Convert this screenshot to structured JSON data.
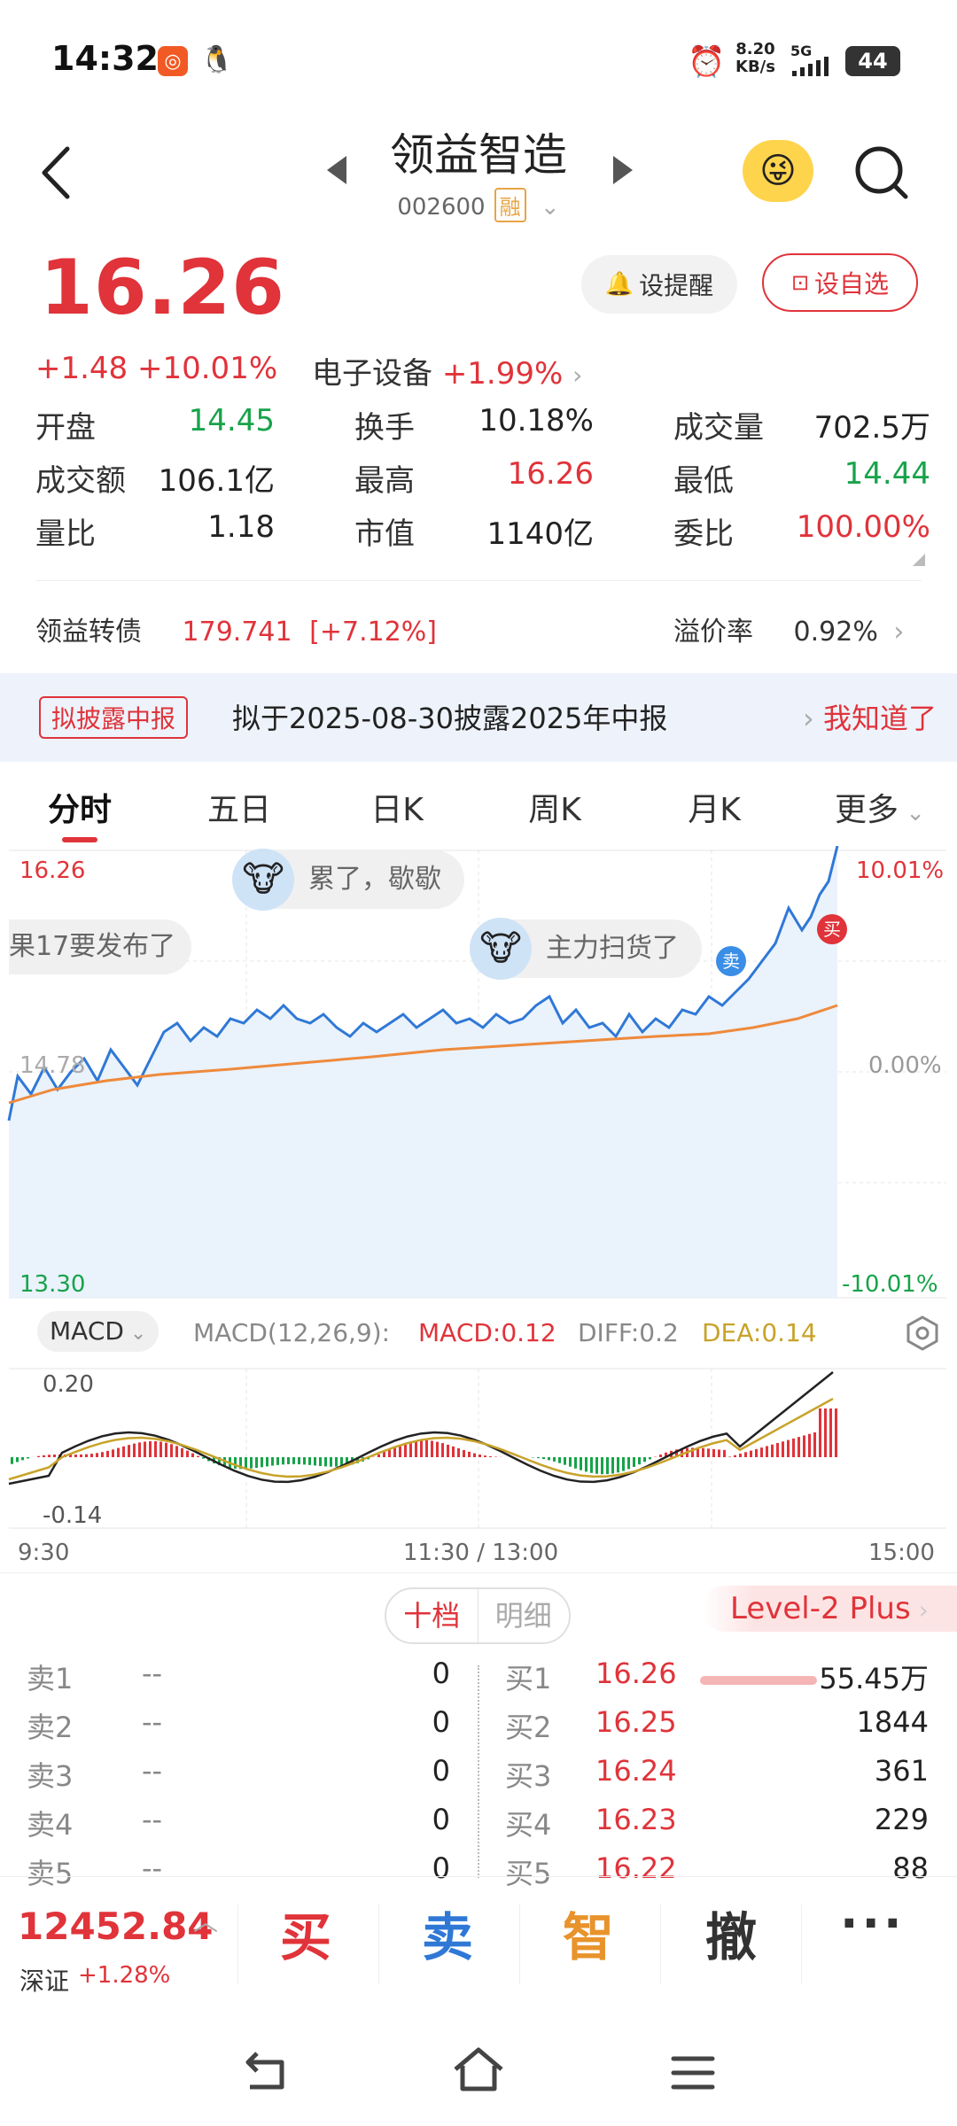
{
  "status_bar": {
    "time": "14:32",
    "net_speed": "8.20",
    "net_unit": "KB/s",
    "signal": "5G",
    "battery": "44"
  },
  "header": {
    "stock_name": "领益智造",
    "stock_code": "002600",
    "margin_badge": "融"
  },
  "quote": {
    "price": "16.26",
    "change": "+1.48",
    "change_pct": "+10.01%",
    "sector": "电子设备",
    "sector_pct": "+1.99%",
    "alert_btn": "设提醒",
    "watch_btn": "设自选",
    "stats": [
      [
        {
          "label": "开盘",
          "value": "14.45",
          "color": "green"
        },
        {
          "label": "换手",
          "value": "10.18%",
          "color": "black"
        },
        {
          "label": "成交量",
          "value": "702.5万",
          "color": "black"
        }
      ],
      [
        {
          "label": "成交额",
          "value": "106.1亿",
          "color": "black"
        },
        {
          "label": "最高",
          "value": "16.26",
          "color": "red"
        },
        {
          "label": "最低",
          "value": "14.44",
          "color": "green"
        }
      ],
      [
        {
          "label": "量比",
          "value": "1.18",
          "color": "black"
        },
        {
          "label": "市值",
          "value": "1140亿",
          "color": "black"
        },
        {
          "label": "委比",
          "value": "100.00%",
          "color": "red"
        }
      ]
    ],
    "bond_label": "领益转债",
    "bond_value": "179.741",
    "bond_pct": "[+7.12%]",
    "premium_label": "溢价率",
    "premium_value": "0.92%"
  },
  "banner": {
    "tag": "拟披露中报",
    "text": "拟于2025-08-30披露2025年中报",
    "action": "我知道了"
  },
  "tabs": [
    "分时",
    "五日",
    "日K",
    "周K",
    "月K",
    "更多"
  ],
  "chart": {
    "price_high": "16.26",
    "price_base": "14.78",
    "price_low": "13.30",
    "pct_high": "10.01%",
    "pct_base": "0.00%",
    "pct_low": "-10.01%",
    "bubble_1": "累了，歇歇",
    "bubble_2": "果17要发布了",
    "bubble_3": "主力扫货了",
    "sell_marker": "卖",
    "buy_marker": "买",
    "macd_selector": "MACD",
    "macd_params": "MACD(12,26,9):",
    "macd_value": "MACD:0.12",
    "diff_value": "DIFF:0.2",
    "dea_value": "DEA:0.14",
    "macd_top": "0.20",
    "macd_bottom": "-0.14",
    "time_start": "9:30",
    "time_mid": "11:30 / 13:00",
    "time_end": "15:00"
  },
  "orderbook": {
    "tab_active": "十档",
    "tab_inactive": "明细",
    "level2": "Level-2 Plus",
    "sells": [
      {
        "label": "卖1",
        "price": "--",
        "vol": "0"
      },
      {
        "label": "卖2",
        "price": "--",
        "vol": "0"
      },
      {
        "label": "卖3",
        "price": "--",
        "vol": "0"
      },
      {
        "label": "卖4",
        "price": "--",
        "vol": "0"
      },
      {
        "label": "卖5",
        "price": "--",
        "vol": "0"
      }
    ],
    "buys": [
      {
        "label": "买1",
        "price": "16.26",
        "vol": "55.45万"
      },
      {
        "label": "买2",
        "price": "16.25",
        "vol": "1844"
      },
      {
        "label": "买3",
        "price": "16.24",
        "vol": "361"
      },
      {
        "label": "买4",
        "price": "16.23",
        "vol": "229"
      },
      {
        "label": "买5",
        "price": "16.22",
        "vol": "88"
      }
    ]
  },
  "bottom": {
    "index_value": "12452.84",
    "index_name": "深证",
    "index_pct": "+1.28%",
    "buy": "买",
    "sell": "卖",
    "smart": "智",
    "cancel": "撤"
  }
}
